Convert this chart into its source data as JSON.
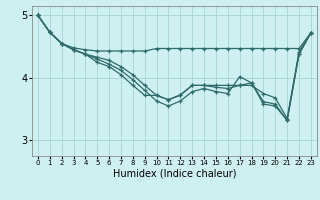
{
  "xlabel": "Humidex (Indice chaleur)",
  "x": [
    0,
    1,
    2,
    3,
    4,
    5,
    6,
    7,
    8,
    9,
    10,
    11,
    12,
    13,
    14,
    15,
    16,
    17,
    18,
    19,
    20,
    21,
    22,
    23
  ],
  "line1": [
    5.0,
    4.73,
    4.55,
    4.48,
    4.45,
    4.43,
    4.43,
    4.43,
    4.43,
    4.43,
    4.47,
    4.47,
    4.47,
    4.47,
    4.47,
    4.47,
    4.47,
    4.47,
    4.47,
    4.47,
    4.47,
    4.47,
    4.47,
    4.72
  ],
  "line2": [
    5.0,
    4.73,
    4.55,
    4.45,
    4.38,
    4.25,
    4.18,
    4.05,
    3.88,
    3.72,
    3.72,
    3.65,
    3.72,
    3.88,
    3.88,
    3.88,
    3.88,
    3.88,
    3.88,
    3.75,
    3.68,
    3.35,
    4.42,
    4.72
  ],
  "line3": [
    5.0,
    4.73,
    4.55,
    4.45,
    4.38,
    4.33,
    4.28,
    4.18,
    4.05,
    3.88,
    3.72,
    3.65,
    3.73,
    3.88,
    3.88,
    3.85,
    3.83,
    3.88,
    3.92,
    3.62,
    3.58,
    3.32,
    4.38,
    4.72
  ],
  "line4": [
    5.0,
    4.73,
    4.55,
    4.45,
    4.38,
    4.3,
    4.22,
    4.12,
    3.97,
    3.8,
    3.63,
    3.55,
    3.63,
    3.78,
    3.83,
    3.78,
    3.75,
    4.02,
    3.92,
    3.58,
    3.55,
    3.32,
    4.38,
    4.72
  ],
  "line_color": "#2e6b6b",
  "bg_color": "#cff0f0",
  "grid_color": "#aad8d8",
  "ylim": [
    2.75,
    5.15
  ],
  "yticks": [
    3,
    4,
    5
  ]
}
